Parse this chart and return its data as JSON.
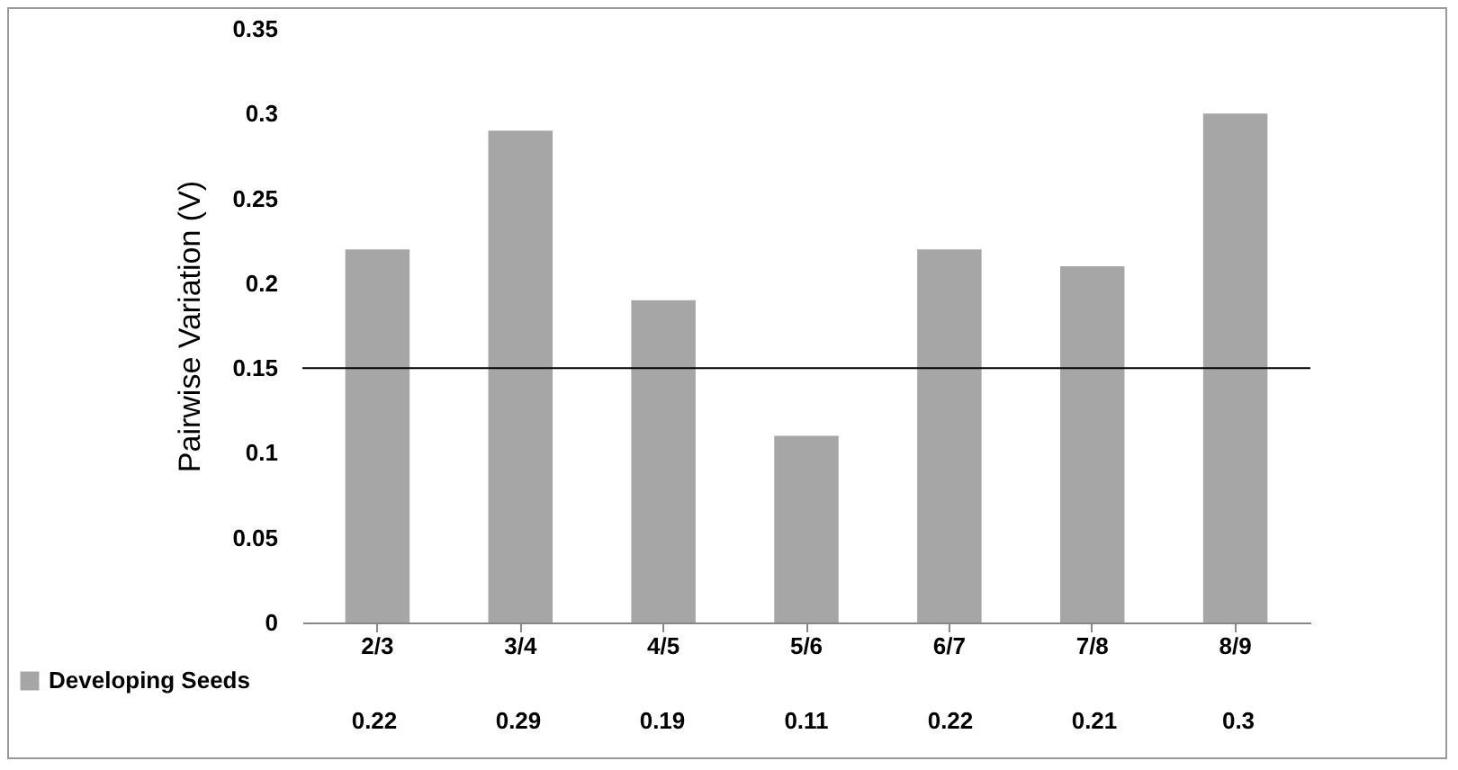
{
  "chart_data": {
    "type": "bar",
    "ylabel": "Pairwise Variation (V)",
    "categories": [
      "2/3",
      "3/4",
      "4/5",
      "5/6",
      "6/7",
      "7/8",
      "8/9"
    ],
    "series": [
      {
        "name": "Developing Seeds",
        "color": "#a6a6a6",
        "values": [
          0.22,
          0.29,
          0.19,
          0.11,
          0.22,
          0.21,
          0.3
        ]
      }
    ],
    "ylim": [
      0,
      0.35
    ],
    "yticks": [
      0,
      0.05,
      0.1,
      0.15,
      0.2,
      0.25,
      0.3,
      0.35
    ],
    "grid": false,
    "legend": "bottom left",
    "data_labels": true,
    "ref_lines": [
      {
        "axis": "y",
        "value": 0.15,
        "color": "#000000"
      }
    ]
  }
}
